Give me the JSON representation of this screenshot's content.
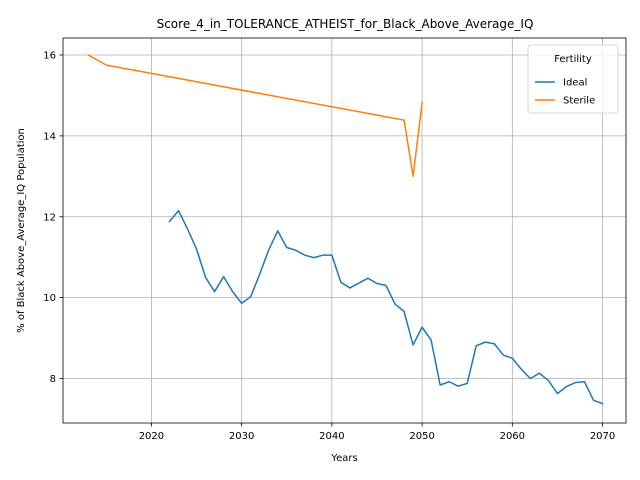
{
  "chart_data": {
    "type": "line",
    "title": "Score_4_in_TOLERANCE_ATHEIST_for_Black_Above_Average_IQ",
    "xlabel": "Years",
    "ylabel": "% of Black Above_Average_IQ Population",
    "xlim": [
      2010.2,
      2072.6
    ],
    "ylim": [
      6.9,
      16.42
    ],
    "xticks": [
      2020,
      2030,
      2040,
      2050,
      2060,
      2070
    ],
    "yticks": [
      8,
      10,
      12,
      14,
      16
    ],
    "grid": true,
    "legend": {
      "title": "Fertility",
      "position": "top-right"
    },
    "series": [
      {
        "name": "Ideal",
        "color": "#1f77b4",
        "points": [
          [
            2022,
            11.88
          ],
          [
            2023,
            12.15
          ],
          [
            2024,
            11.7
          ],
          [
            2025,
            11.2
          ],
          [
            2026,
            10.5
          ],
          [
            2027,
            10.15
          ],
          [
            2028,
            10.52
          ],
          [
            2029,
            10.15
          ],
          [
            2030,
            9.86
          ],
          [
            2031,
            10.02
          ],
          [
            2032,
            10.58
          ],
          [
            2033,
            11.18
          ],
          [
            2034,
            11.65
          ],
          [
            2035,
            11.24
          ],
          [
            2036,
            11.17
          ],
          [
            2037,
            11.05
          ],
          [
            2038,
            10.99
          ],
          [
            2039,
            11.05
          ],
          [
            2040,
            11.05
          ],
          [
            2041,
            10.38
          ],
          [
            2042,
            10.24
          ],
          [
            2043,
            10.36
          ],
          [
            2044,
            10.48
          ],
          [
            2045,
            10.35
          ],
          [
            2046,
            10.3
          ],
          [
            2047,
            9.84
          ],
          [
            2048,
            9.66
          ],
          [
            2049,
            8.83
          ],
          [
            2050,
            9.27
          ],
          [
            2051,
            8.95
          ],
          [
            2052,
            7.84
          ],
          [
            2053,
            7.92
          ],
          [
            2054,
            7.81
          ],
          [
            2055,
            7.88
          ],
          [
            2056,
            8.81
          ],
          [
            2057,
            8.9
          ],
          [
            2058,
            8.86
          ],
          [
            2059,
            8.58
          ],
          [
            2060,
            8.5
          ],
          [
            2061,
            8.23
          ],
          [
            2062,
            8.0
          ],
          [
            2063,
            8.13
          ],
          [
            2064,
            7.95
          ],
          [
            2065,
            7.63
          ],
          [
            2066,
            7.8
          ],
          [
            2067,
            7.9
          ],
          [
            2068,
            7.92
          ],
          [
            2069,
            7.46
          ],
          [
            2070,
            7.38
          ]
        ]
      },
      {
        "name": "Sterile",
        "color": "#ff7f0e",
        "points": [
          [
            2013,
            16.0
          ],
          [
            2015,
            15.75
          ],
          [
            2048,
            14.39
          ],
          [
            2049,
            13.0
          ],
          [
            2050,
            14.83
          ]
        ]
      }
    ]
  }
}
